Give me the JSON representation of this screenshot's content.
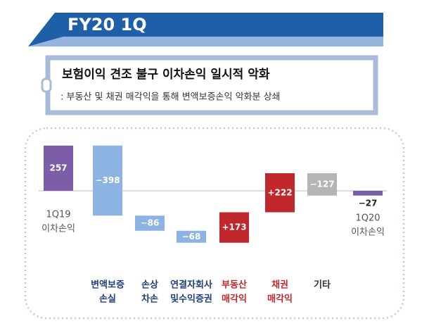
{
  "header": {
    "title": "FY20 1Q"
  },
  "summary": {
    "title": "보험이익 견조 불구 이차손익 일시적 악화",
    "subtitle": ": 부동산 및 채권 매각익을 통해 변액보증손익 악화분 상쇄"
  },
  "chart_data": {
    "type": "waterfall",
    "categories": [
      [
        "1Q19",
        "이차손익"
      ],
      [
        "변액보증",
        "손실"
      ],
      [
        "손상",
        "차손"
      ],
      [
        "연결자회사",
        "및수익증권"
      ],
      [
        "부동산",
        "매각익"
      ],
      [
        "채권",
        "매각익"
      ],
      [
        "기타"
      ],
      [
        "1Q20",
        "이차손익"
      ]
    ],
    "values": [
      257,
      -398,
      -86,
      -68,
      173,
      222,
      -127,
      -27
    ],
    "value_labels": [
      "257",
      "−398",
      "−86",
      "−68",
      "+173",
      "+222",
      "−127",
      "−27"
    ],
    "totals": [
      true,
      false,
      false,
      false,
      false,
      false,
      false,
      true
    ],
    "colors": [
      "#7b5ea7",
      "#8db3e2",
      "#8db3e2",
      "#8db3e2",
      "#c0282d",
      "#c0282d",
      "#b5b5b5",
      "#7b5ea7"
    ],
    "label_colors": [
      "#555555",
      "#1f3f7a",
      "#1f3f7a",
      "#1f3f7a",
      "#c0282d",
      "#c0282d",
      "#333333",
      "#555555"
    ]
  }
}
